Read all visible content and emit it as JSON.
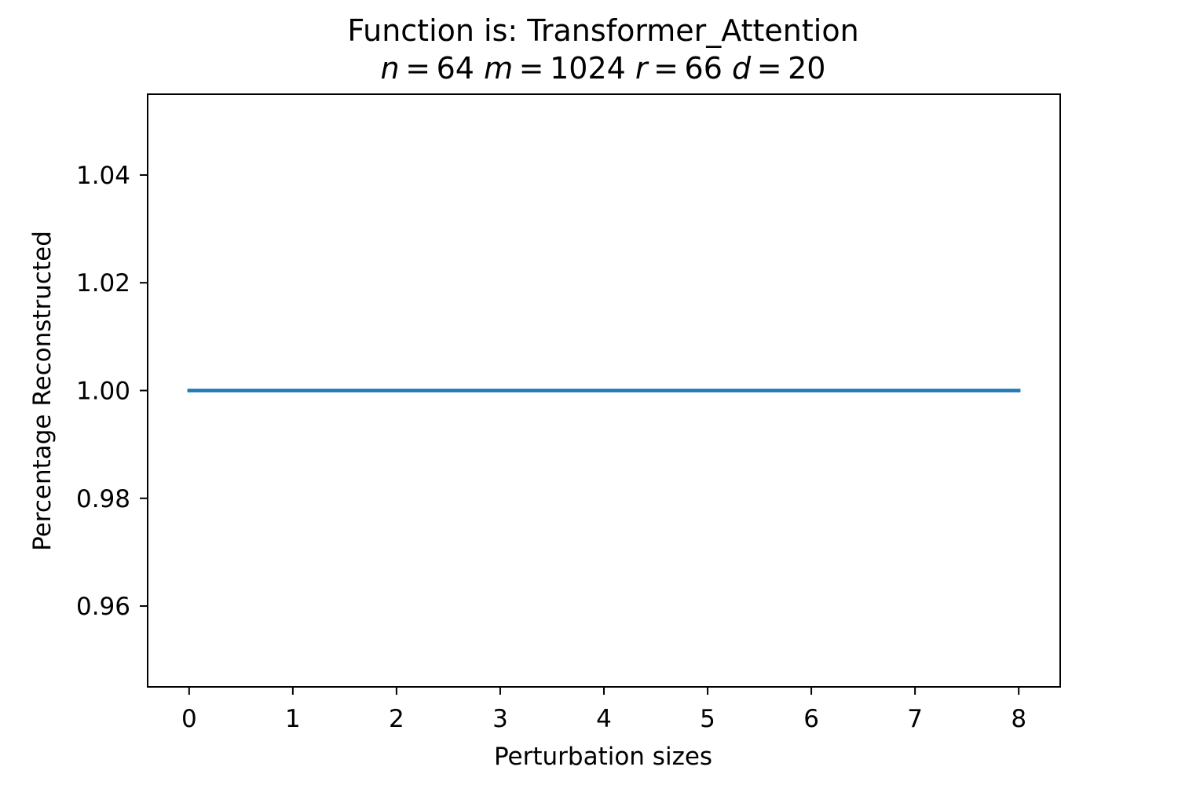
{
  "chart_data": {
    "type": "line",
    "title": "Function is: Transformer_Attention",
    "subtitle_params": [
      {
        "var": "n",
        "value": "64"
      },
      {
        "var": "m",
        "value": "1024"
      },
      {
        "var": "r",
        "value": "66"
      },
      {
        "var": "d",
        "value": "20"
      }
    ],
    "xlabel": "Perturbation sizes",
    "ylabel": "Percentage Reconstructed",
    "xlim": [
      -0.4,
      8.4
    ],
    "ylim": [
      0.945,
      1.055
    ],
    "xticks": [
      0,
      1,
      2,
      3,
      4,
      5,
      6,
      7,
      8
    ],
    "yticks": [
      0.96,
      0.98,
      1.0,
      1.02,
      1.04
    ],
    "ytick_labels": [
      "0.96",
      "0.98",
      "1.00",
      "1.02",
      "1.04"
    ],
    "series": [
      {
        "color": "#1f77b4",
        "x": [
          0,
          1,
          2,
          3,
          4,
          5,
          6,
          7,
          8
        ],
        "y": [
          1.0,
          1.0,
          1.0,
          1.0,
          1.0,
          1.0,
          1.0,
          1.0,
          1.0
        ]
      }
    ],
    "grid": false,
    "legend": "none"
  }
}
